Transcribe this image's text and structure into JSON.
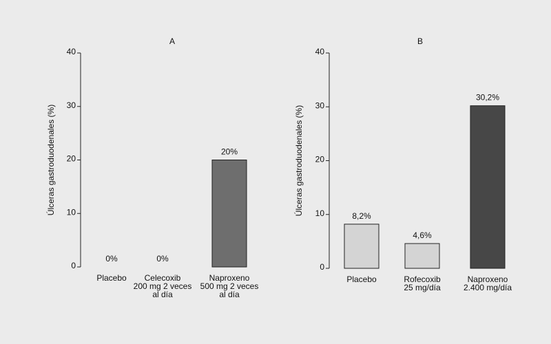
{
  "chart_data": [
    {
      "type": "bar",
      "title": "A",
      "y_label": "Úlceras gastroduodenales (%)",
      "categories": [
        "Placebo",
        "Celecoxib\n200 mg 2 veces\nal día",
        "Naproxeno\n500 mg 2 veces\nal día"
      ],
      "values": [
        0,
        0,
        20
      ],
      "value_labels": [
        "0%",
        "0%",
        "20%"
      ],
      "colors": [
        "#d4d4d4",
        "#d4d4d4",
        "#6e6e6e"
      ],
      "ylim": [
        0,
        40
      ],
      "yticks": [
        0,
        10,
        20,
        30,
        40
      ]
    },
    {
      "type": "bar",
      "title": "B",
      "y_label": "Úlceras gastroduodenales (%)",
      "categories": [
        "Placebo",
        "Rofecoxib\n25 mg/día",
        "Naproxeno\n2.400 mg/día"
      ],
      "values": [
        8.2,
        4.6,
        30.2
      ],
      "value_labels": [
        "8,2%",
        "4,6%",
        "30,2%"
      ],
      "colors": [
        "#d4d4d4",
        "#d4d4d4",
        "#474747"
      ],
      "ylim": [
        0,
        40
      ],
      "yticks": [
        0,
        10,
        20,
        30,
        40
      ]
    }
  ]
}
